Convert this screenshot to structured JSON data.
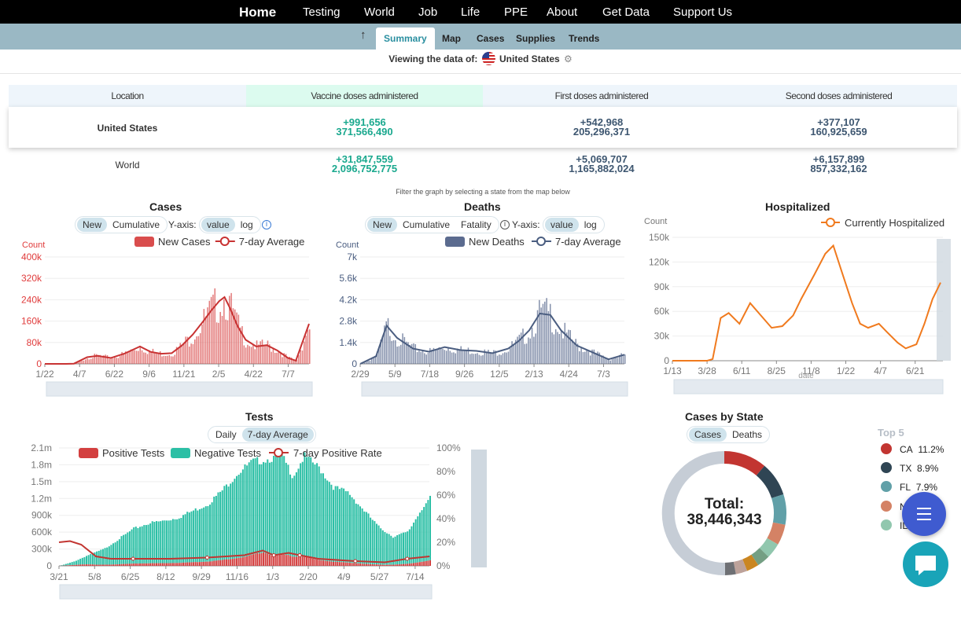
{
  "nav": {
    "items": [
      "Home",
      "Testing",
      "World",
      "Job",
      "Life",
      "PPE",
      "About",
      "Get Data",
      "Support Us"
    ]
  },
  "subnav": {
    "tabs": [
      "Summary",
      "Map",
      "Cases",
      "Supplies",
      "Trends"
    ],
    "active": "Summary"
  },
  "viewing": {
    "label": "Viewing the data of:",
    "location": "United States"
  },
  "table": {
    "headers": [
      "Location",
      "Vaccine doses administered",
      "First doses administered",
      "Second doses administered"
    ],
    "rows": [
      {
        "location": "United States",
        "vaccine_change": "+991,656",
        "vaccine_total": "371,566,490",
        "first_change": "+542,968",
        "first_total": "205,296,371",
        "second_change": "+377,107",
        "second_total": "160,925,659"
      },
      {
        "location": "World",
        "vaccine_change": "+31,847,559",
        "vaccine_total": "2,096,752,775",
        "first_change": "+5,069,707",
        "first_total": "1,165,882,024",
        "second_change": "+6,157,899",
        "second_total": "857,332,162"
      }
    ]
  },
  "filter_note": "Filter the graph by selecting a state from the map below",
  "cases_controls": {
    "toggle": [
      "New",
      "Cumulative"
    ],
    "yaxis_label": "Y-axis:",
    "yaxis": [
      "value",
      "log"
    ]
  },
  "deaths_controls": {
    "toggle": [
      "New",
      "Cumulative",
      "Fatality"
    ],
    "yaxis_label": "Y-axis:",
    "yaxis": [
      "value",
      "log"
    ]
  },
  "tests_controls": {
    "toggle": [
      "Daily",
      "7-day Average"
    ]
  },
  "state_controls": {
    "toggle": [
      "Cases",
      "Deaths"
    ]
  },
  "colors": {
    "cases": "#d94d4d",
    "deaths": "#5b6b8f",
    "hosp": "#f07a1e",
    "positive": "#d33f3f",
    "negative": "#2bbfa5"
  },
  "chart_data": [
    {
      "type": "bar",
      "title": "Cases",
      "ylabel": "Count",
      "legend": [
        "New Cases",
        "7-day Average"
      ],
      "xticks": [
        "1/22",
        "4/7",
        "6/22",
        "9/6",
        "11/21",
        "2/5",
        "4/22",
        "7/7"
      ],
      "yticks": [
        "0",
        "80k",
        "160k",
        "240k",
        "320k",
        "400k"
      ],
      "ylim": [
        0,
        400000
      ],
      "series": [
        {
          "name": "7-day Average",
          "x": [
            0,
            8,
            11,
            16,
            20,
            25,
            30,
            36,
            40,
            44,
            48,
            52,
            56,
            60,
            63,
            66,
            68,
            70,
            73,
            76,
            80,
            84,
            88,
            92,
            95,
            100
          ],
          "values": [
            0,
            0,
            1000,
            25000,
            30000,
            22000,
            38000,
            65000,
            45000,
            38000,
            40000,
            70000,
            110000,
            160000,
            200000,
            235000,
            250000,
            210000,
            140000,
            90000,
            65000,
            70000,
            50000,
            22000,
            12000,
            150000
          ]
        }
      ]
    },
    {
      "type": "bar",
      "title": "Deaths",
      "ylabel": "Count",
      "legend": [
        "New Deaths",
        "7-day Average"
      ],
      "xticks": [
        "2/29",
        "5/9",
        "7/18",
        "9/26",
        "12/5",
        "2/13",
        "4/24",
        "7/3"
      ],
      "yticks": [
        "0",
        "1.4k",
        "2.8k",
        "4.2k",
        "5.6k",
        "7k"
      ],
      "ylim": [
        0,
        7000
      ],
      "series": [
        {
          "name": "7-day Average",
          "x": [
            0,
            6,
            10,
            14,
            20,
            26,
            32,
            38,
            44,
            50,
            56,
            60,
            64,
            68,
            72,
            76,
            82,
            88,
            94,
            100
          ],
          "values": [
            0,
            500,
            2500,
            1700,
            1000,
            800,
            1100,
            900,
            850,
            700,
            1000,
            1500,
            2200,
            3300,
            3200,
            2200,
            1200,
            750,
            300,
            600
          ]
        }
      ]
    },
    {
      "type": "line",
      "title": "Hospitalized",
      "ylabel": "Count",
      "legend": [
        "Currently Hospitalized"
      ],
      "xlabel": "date",
      "xticks": [
        "1/13",
        "3/28",
        "6/11",
        "8/25",
        "11/8",
        "1/22",
        "4/7",
        "6/21"
      ],
      "yticks": [
        "0",
        "30k",
        "60k",
        "90k",
        "120k",
        "150k"
      ],
      "ylim": [
        0,
        150000
      ],
      "series": [
        {
          "name": "Currently Hospitalized",
          "x": [
            0,
            13,
            15,
            18,
            21,
            25,
            29,
            33,
            37,
            41,
            45,
            48,
            53,
            57,
            60,
            63,
            67,
            70,
            73,
            77,
            80,
            84,
            87,
            91,
            94,
            97,
            100
          ],
          "values": [
            0,
            0,
            2000,
            52000,
            58000,
            45000,
            70000,
            55000,
            40000,
            42000,
            55000,
            75000,
            105000,
            130000,
            140000,
            110000,
            70000,
            45000,
            40000,
            45000,
            35000,
            22000,
            15000,
            20000,
            45000,
            75000,
            95000
          ]
        }
      ]
    },
    {
      "type": "bar",
      "title": "Tests",
      "legend": [
        "Positive Tests",
        "Negative Tests",
        "7-day Positive Rate"
      ],
      "xticks": [
        "3/21",
        "5/8",
        "6/25",
        "8/12",
        "9/29",
        "11/16",
        "1/3",
        "2/20",
        "4/9",
        "5/27",
        "7/14"
      ],
      "yticks": [
        "0",
        "300k",
        "600k",
        "900k",
        "1.2m",
        "1.5m",
        "1.8m",
        "2.1m"
      ],
      "y2ticks": [
        "0%",
        "20%",
        "40%",
        "60%",
        "80%",
        "100%"
      ],
      "ylim": [
        0,
        2100000
      ],
      "series": [
        {
          "name": "Total Tests",
          "x": [
            0,
            4,
            8,
            12,
            16,
            20,
            24,
            28,
            32,
            36,
            40,
            44,
            48,
            52,
            56,
            60,
            63,
            66,
            70,
            74,
            78,
            82,
            86,
            90,
            94,
            98,
            100
          ],
          "values": [
            0,
            80000,
            200000,
            300000,
            480000,
            660000,
            760000,
            800000,
            860000,
            980000,
            1100000,
            1350000,
            1650000,
            1850000,
            1900000,
            1950000,
            1600000,
            1950000,
            1750000,
            1400000,
            1300000,
            1000000,
            700000,
            520000,
            600000,
            1050000,
            1200000
          ]
        },
        {
          "name": "7-day Positive Rate",
          "x": [
            0,
            3,
            6,
            10,
            14,
            20,
            30,
            40,
            50,
            55,
            58,
            62,
            65,
            70,
            80,
            88,
            94,
            100
          ],
          "values": [
            20,
            21,
            18,
            8,
            6,
            6,
            6,
            7,
            9,
            13,
            9,
            11,
            9,
            6,
            4,
            3,
            6,
            8
          ]
        }
      ]
    },
    {
      "type": "pie",
      "title": "Cases by State",
      "center_label": "Total:",
      "total": "38,446,343",
      "top5_title": "Top 5",
      "top5": [
        {
          "state": "CA",
          "pct": "11.2%",
          "color": "#c23531"
        },
        {
          "state": "TX",
          "pct": "8.9%",
          "color": "#2f4554"
        },
        {
          "state": "FL",
          "pct": "7.9%",
          "color": "#61a0a8"
        },
        {
          "state": "N",
          "pct": "",
          "color": "#d48265"
        },
        {
          "state": "IL",
          "pct": "",
          "color": "#91c7ae"
        }
      ],
      "slices": [
        11.2,
        8.9,
        7.9,
        5.4,
        4.0,
        3.4,
        3.2,
        3.0,
        2.8,
        50.2
      ],
      "slice_colors": [
        "#c23531",
        "#2f4554",
        "#61a0a8",
        "#d48265",
        "#91c7ae",
        "#749f83",
        "#ca8622",
        "#bda29a",
        "#6e7074",
        "#546570"
      ]
    }
  ]
}
